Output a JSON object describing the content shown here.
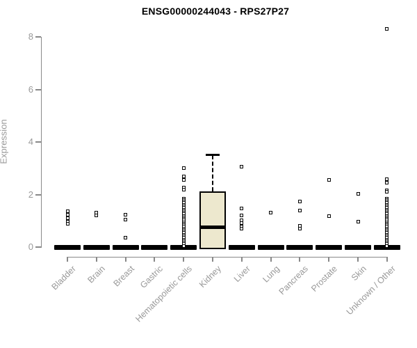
{
  "title": "ENSG00000244043 - RPS27P27",
  "colors": {
    "box_fill": "#EDE8CE",
    "box_border": "#000000",
    "axis": "#888888",
    "tick_label": "#999999",
    "title_color": "#000000",
    "background": "#ffffff"
  },
  "chart_data": {
    "type": "boxplot",
    "title": "ENSG00000244043 - RPS27P27",
    "xlabel": "",
    "ylabel": "Expression",
    "ylim": [
      0,
      8.4
    ],
    "yticks": [
      0,
      2,
      4,
      6,
      8
    ],
    "grid": false,
    "legend": "none",
    "categories": [
      "Bladder",
      "Brain",
      "Breast",
      "Gastric",
      "Hematopoietic cells",
      "Kidney",
      "Liver",
      "Lung",
      "Pancreas",
      "Prostate",
      "Skin",
      "Unknown / Other"
    ],
    "boxes": [
      {
        "category": "Bladder",
        "q1": 0,
        "median": 0,
        "q3": 0,
        "whisker_low": 0,
        "whisker_high": 0,
        "outliers": [
          1.37,
          1.22,
          1.09,
          0.97,
          0.88
        ]
      },
      {
        "category": "Brain",
        "q1": 0,
        "median": 0,
        "q3": 0,
        "whisker_low": 0,
        "whisker_high": 0,
        "outliers": [
          1.32,
          1.2
        ]
      },
      {
        "category": "Breast",
        "q1": 0,
        "median": 0,
        "q3": 0,
        "whisker_low": 0,
        "whisker_high": 0,
        "outliers": [
          1.24,
          1.04,
          0.35
        ]
      },
      {
        "category": "Gastric",
        "q1": 0,
        "median": 0,
        "q3": 0,
        "whisker_low": 0,
        "whisker_high": 0,
        "outliers": []
      },
      {
        "category": "Hematopoietic cells",
        "q1": 0,
        "median": 0,
        "q3": 0,
        "whisker_low": 0,
        "whisker_high": 0,
        "outliers": [
          3.0,
          2.7,
          2.55,
          2.27,
          2.18,
          1.85,
          1.79,
          1.73,
          1.67,
          1.61,
          1.55,
          1.49,
          1.43,
          1.37,
          1.31,
          1.25,
          1.19,
          1.13,
          1.07,
          1.01,
          0.95,
          0.89,
          0.83,
          0.77,
          0.71,
          0.65,
          0.59,
          0.53,
          0.47,
          0.41,
          0.35,
          0.29,
          0.23,
          0.17,
          0.11,
          0.05
        ]
      },
      {
        "category": "Kidney",
        "q1": 0,
        "median": 0.75,
        "q3": 2.13,
        "whisker_low": 0,
        "whisker_high": 3.5,
        "outliers": []
      },
      {
        "category": "Liver",
        "q1": 0,
        "median": 0,
        "q3": 0,
        "whisker_low": 0,
        "whisker_high": 0,
        "outliers": [
          3.05,
          1.48,
          1.21,
          1.03,
          0.91,
          0.79,
          0.69
        ]
      },
      {
        "category": "Lung",
        "q1": 0,
        "median": 0,
        "q3": 0,
        "whisker_low": 0,
        "whisker_high": 0,
        "outliers": [
          1.3
        ]
      },
      {
        "category": "Pancreas",
        "q1": 0,
        "median": 0,
        "q3": 0,
        "whisker_low": 0,
        "whisker_high": 0,
        "outliers": [
          1.74,
          1.39,
          0.82,
          0.7
        ]
      },
      {
        "category": "Prostate",
        "q1": 0,
        "median": 0,
        "q3": 0,
        "whisker_low": 0,
        "whisker_high": 0,
        "outliers": [
          2.56,
          1.19
        ]
      },
      {
        "category": "Skin",
        "q1": 0,
        "median": 0,
        "q3": 0,
        "whisker_low": 0,
        "whisker_high": 0,
        "outliers": [
          2.03,
          0.97
        ]
      },
      {
        "category": "Unknown / Other",
        "q1": 0,
        "median": 0,
        "q3": 0,
        "whisker_low": 0,
        "whisker_high": 0,
        "outliers": [
          8.3,
          2.57,
          2.45,
          2.17,
          2.1,
          1.85,
          1.79,
          1.73,
          1.67,
          1.61,
          1.55,
          1.49,
          1.43,
          1.37,
          1.31,
          1.25,
          1.19,
          1.13,
          1.07,
          1.01,
          0.95,
          0.89,
          0.83,
          0.77,
          0.71,
          0.65,
          0.59,
          0.53,
          0.47,
          0.41,
          0.35,
          0.29,
          0.23,
          0.17,
          0.11,
          0.05
        ]
      }
    ]
  }
}
